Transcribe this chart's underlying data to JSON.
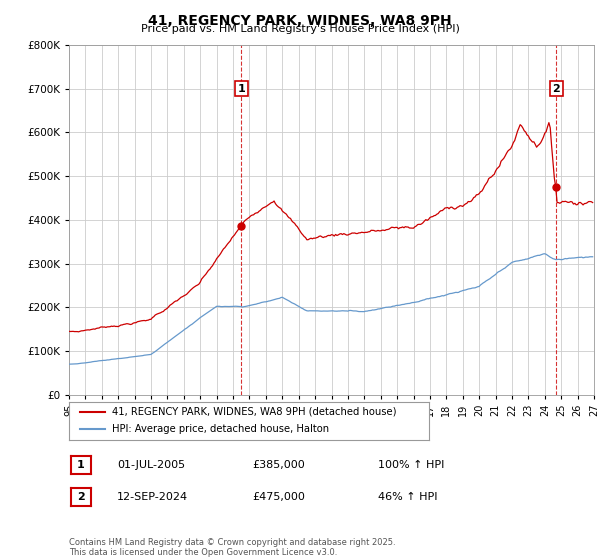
{
  "title": "41, REGENCY PARK, WIDNES, WA8 9PH",
  "subtitle": "Price paid vs. HM Land Registry's House Price Index (HPI)",
  "legend_label_red": "41, REGENCY PARK, WIDNES, WA8 9PH (detached house)",
  "legend_label_blue": "HPI: Average price, detached house, Halton",
  "annotation1_date": "01-JUL-2005",
  "annotation1_price": "£385,000",
  "annotation1_hpi": "100% ↑ HPI",
  "annotation2_date": "12-SEP-2024",
  "annotation2_price": "£475,000",
  "annotation2_hpi": "46% ↑ HPI",
  "footer": "Contains HM Land Registry data © Crown copyright and database right 2025.\nThis data is licensed under the Open Government Licence v3.0.",
  "red_color": "#cc0000",
  "blue_color": "#6699cc",
  "vline_color": "#cc0000",
  "grid_color": "#cccccc",
  "chart_bg_color": "#ffffff",
  "background_color": "#ffffff",
  "ylim": [
    0,
    800000
  ],
  "xlim_start": 1995.0,
  "xlim_end": 2027.0,
  "ytick_step": 100000,
  "sale1_year": 2005.5,
  "sale2_year": 2024.7,
  "sale1_price": 385000,
  "sale2_price": 475000
}
